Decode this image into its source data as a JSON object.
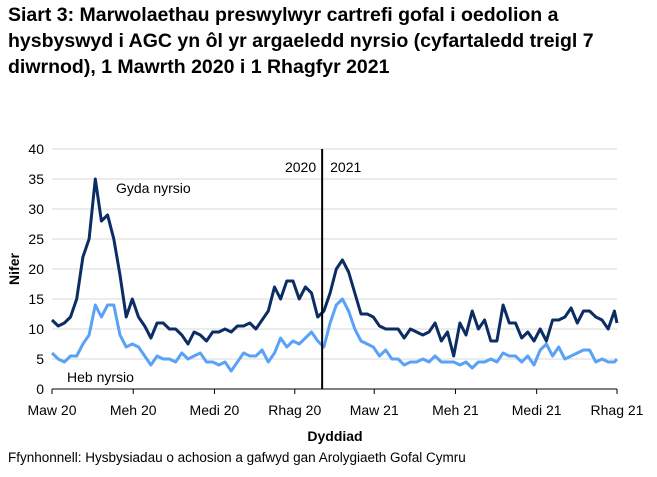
{
  "chart_data": {
    "type": "line",
    "title": "Siart 3: Marwolaethau preswylwyr cartrefi gofal i oedolion a hysbyswyd i AGC yn ôl yr argaeledd nyrsio (cyfartaledd treigl 7 diwrnod), 1 Mawrth 2020 i 1 Rhagfyr 2021",
    "xlabel": "Dyddiad",
    "ylabel": "Nifer",
    "ylim": [
      0,
      40
    ],
    "yticks": [
      0,
      5,
      10,
      15,
      20,
      25,
      30,
      35,
      40
    ],
    "xlim": [
      "2020-03-01",
      "2021-12-01"
    ],
    "xticks": [
      {
        "date": "2020-03-01",
        "label": "Maw 20"
      },
      {
        "date": "2020-06-01",
        "label": "Meh 20"
      },
      {
        "date": "2020-09-01",
        "label": "Medi 20"
      },
      {
        "date": "2020-12-01",
        "label": "Rhag 20"
      },
      {
        "date": "2021-03-01",
        "label": "Maw 21"
      },
      {
        "date": "2021-06-01",
        "label": "Meh 21"
      },
      {
        "date": "2021-09-01",
        "label": "Medi 21"
      },
      {
        "date": "2021-12-01",
        "label": "Rhag 21"
      }
    ],
    "grid": true,
    "divider": {
      "date": "2021-01-01",
      "left_label": "2020",
      "right_label": "2021"
    },
    "x": [
      "2020-03-01",
      "2020-03-08",
      "2020-03-15",
      "2020-03-22",
      "2020-03-29",
      "2020-04-05",
      "2020-04-12",
      "2020-04-19",
      "2020-04-26",
      "2020-05-03",
      "2020-05-10",
      "2020-05-17",
      "2020-05-24",
      "2020-05-31",
      "2020-06-07",
      "2020-06-14",
      "2020-06-21",
      "2020-06-28",
      "2020-07-05",
      "2020-07-12",
      "2020-07-19",
      "2020-07-26",
      "2020-08-02",
      "2020-08-09",
      "2020-08-16",
      "2020-08-23",
      "2020-08-30",
      "2020-09-06",
      "2020-09-13",
      "2020-09-20",
      "2020-09-27",
      "2020-10-04",
      "2020-10-11",
      "2020-10-18",
      "2020-10-25",
      "2020-11-01",
      "2020-11-08",
      "2020-11-15",
      "2020-11-22",
      "2020-11-29",
      "2020-12-06",
      "2020-12-13",
      "2020-12-20",
      "2020-12-27",
      "2021-01-03",
      "2021-01-10",
      "2021-01-17",
      "2021-01-24",
      "2021-01-31",
      "2021-02-07",
      "2021-02-14",
      "2021-02-21",
      "2021-02-28",
      "2021-03-07",
      "2021-03-14",
      "2021-03-21",
      "2021-03-28",
      "2021-04-04",
      "2021-04-11",
      "2021-04-18",
      "2021-04-25",
      "2021-05-02",
      "2021-05-09",
      "2021-05-16",
      "2021-05-23",
      "2021-05-30",
      "2021-06-06",
      "2021-06-13",
      "2021-06-20",
      "2021-06-27",
      "2021-07-04",
      "2021-07-11",
      "2021-07-18",
      "2021-07-25",
      "2021-08-01",
      "2021-08-08",
      "2021-08-15",
      "2021-08-22",
      "2021-08-29",
      "2021-09-05",
      "2021-09-12",
      "2021-09-19",
      "2021-09-26",
      "2021-10-03",
      "2021-10-10",
      "2021-10-17",
      "2021-10-24",
      "2021-10-31",
      "2021-11-07",
      "2021-11-14",
      "2021-11-21",
      "2021-11-28",
      "2021-12-01"
    ],
    "series": [
      {
        "name": "Gyda nyrsio",
        "color": "#0b2d64",
        "values": [
          11.5,
          10.5,
          11,
          12,
          15,
          22,
          25,
          35,
          28,
          29,
          25,
          19,
          12,
          15,
          12,
          10.5,
          8.5,
          11,
          11,
          10,
          10,
          9,
          7.5,
          9.5,
          9,
          8,
          9.5,
          9.5,
          10,
          9.5,
          10.5,
          10.5,
          11,
          10,
          11.5,
          13,
          17,
          15,
          18,
          18,
          15,
          17,
          16,
          12,
          13,
          16,
          20,
          21.5,
          19.5,
          16,
          12.5,
          12.5,
          12,
          10.5,
          10,
          10,
          10,
          8.5,
          10,
          9.5,
          9,
          9.5,
          11,
          8,
          9.5,
          5.5,
          11,
          9,
          13,
          10,
          11.5,
          8,
          8,
          14,
          11,
          11,
          8.5,
          9.5,
          8,
          10,
          8,
          11.5,
          11.5,
          12,
          13.5,
          11,
          13,
          13,
          12,
          11.5,
          10,
          13,
          11
        ]
      },
      {
        "name": "Heb nyrsio",
        "color": "#5aa2f5",
        "values": [
          6,
          5,
          4.5,
          5.5,
          5.5,
          7.5,
          9,
          14,
          12,
          14,
          14,
          9,
          7,
          7.5,
          7,
          5.5,
          4,
          5.5,
          5,
          5,
          4.5,
          6,
          5,
          5.5,
          6,
          4.5,
          4.5,
          4,
          4.5,
          3,
          4.5,
          6,
          5.5,
          5.5,
          6.5,
          4.5,
          6,
          8.5,
          7,
          8,
          7.5,
          8.5,
          9.5,
          8,
          7,
          11,
          14,
          15,
          13,
          10,
          8,
          7.5,
          7,
          5.5,
          6.5,
          5,
          5,
          4,
          4.5,
          4.5,
          5,
          4.5,
          5.5,
          4.5,
          4.5,
          4.5,
          4,
          4.5,
          3.5,
          4.5,
          4.5,
          5,
          4.5,
          6,
          5.5,
          5.5,
          4.5,
          5.5,
          4,
          6.5,
          7.5,
          5.5,
          7,
          5,
          5.5,
          6,
          6.5,
          6.5,
          4.5,
          5,
          4.5,
          4.5,
          5
        ]
      }
    ],
    "annotations": [
      {
        "text": "Gyda nyrsio",
        "series": "Gyda nyrsio"
      },
      {
        "text": "Heb nyrsio",
        "series": "Heb nyrsio"
      }
    ]
  },
  "source": "Ffynhonnell: Hysbysiadau o achosion a gafwyd gan Arolygiaeth Gofal Cymru"
}
